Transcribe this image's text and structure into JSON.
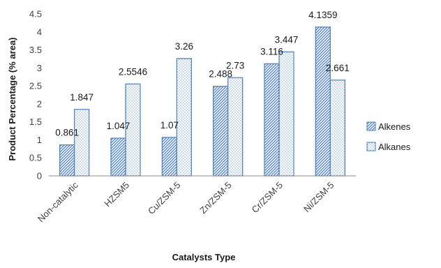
{
  "chart_data": {
    "type": "bar",
    "categories": [
      "Non-catalytic",
      "HZSM5",
      "Cu/ZSM-5",
      "Zn/ZSM-5",
      "Cr/ZSM-5",
      "Ni/ZSM-5"
    ],
    "series": [
      {
        "name": "Alkenes",
        "values": [
          0.861,
          1.047,
          1.07,
          2.488,
          3.116,
          4.1359
        ],
        "labels": [
          "0.861",
          "1.047",
          "1.07",
          "2.488",
          "3.116",
          "4.1359"
        ],
        "pattern": "diagonal-hatch"
      },
      {
        "name": "Alkanes",
        "values": [
          1.847,
          2.5546,
          3.26,
          2.73,
          3.447,
          2.661
        ],
        "labels": [
          "1.847",
          "2.5546",
          "3.26",
          "2.73",
          "3.447",
          "2.661"
        ],
        "pattern": "dotted"
      }
    ],
    "title": "",
    "xlabel": "Catalysts Type",
    "ylabel": "Product Percentage (% area)",
    "ylim": [
      0,
      4.5
    ],
    "yticks": [
      "0",
      "0.5",
      "1",
      "1.5",
      "2",
      "2.5",
      "3",
      "3.5",
      "4",
      "4.5"
    ],
    "grid": false,
    "legend": "right",
    "colors": {
      "bar_edge": "#4a7ebb",
      "bar_pattern": "#4a7ebb",
      "axis": "#8c8c8c"
    }
  }
}
